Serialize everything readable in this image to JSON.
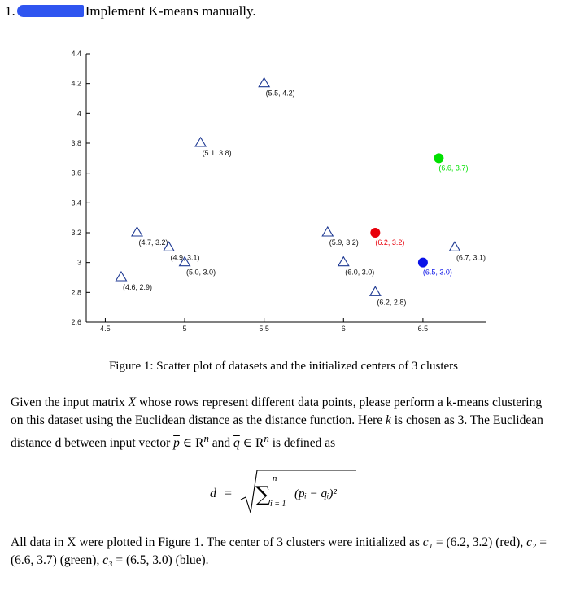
{
  "heading": {
    "number": "1.",
    "title": "Implement K-means manually."
  },
  "chart_data": {
    "type": "scatter",
    "xlim": [
      4.38,
      6.9
    ],
    "ylim": [
      2.6,
      4.4
    ],
    "xticks": [
      4.5,
      5,
      5.5,
      6,
      6.5
    ],
    "yticks": [
      2.6,
      2.8,
      3,
      3.2,
      3.4,
      3.6,
      3.8,
      4,
      4.2,
      4.4
    ],
    "xtick_labels": [
      "4.5",
      "5",
      "5.5",
      "6",
      "6.5"
    ],
    "ytick_labels": [
      "2.6",
      "2.8",
      "3",
      "3.2",
      "3.4",
      "3.6",
      "3.8",
      "4",
      "4.2",
      "4.4"
    ],
    "data_points": [
      {
        "x": 4.6,
        "y": 2.9,
        "label": "(4.6, 2.9)"
      },
      {
        "x": 4.7,
        "y": 3.2,
        "label": "(4.7, 3.2)"
      },
      {
        "x": 4.9,
        "y": 3.1,
        "label": "(4.9, 3.1)"
      },
      {
        "x": 5.0,
        "y": 3.0,
        "label": "(5.0, 3.0)"
      },
      {
        "x": 5.1,
        "y": 3.8,
        "label": "(5.1, 3.8)"
      },
      {
        "x": 5.5,
        "y": 4.2,
        "label": "(5.5, 4.2)"
      },
      {
        "x": 5.9,
        "y": 3.2,
        "label": "(5.9, 3.2)"
      },
      {
        "x": 6.0,
        "y": 3.0,
        "label": "(6.0, 3.0)"
      },
      {
        "x": 6.2,
        "y": 2.8,
        "label": "(6.2, 2.8)"
      },
      {
        "x": 6.7,
        "y": 3.1,
        "label": "(6.7, 3.1)"
      }
    ],
    "data_marker_color": "#1f3a93",
    "centers": [
      {
        "x": 6.2,
        "y": 3.2,
        "label": "(6.2, 3.2)",
        "color": "#e8000b"
      },
      {
        "x": 6.6,
        "y": 3.7,
        "label": "(6.6, 3.7)",
        "color": "#00e000"
      },
      {
        "x": 6.5,
        "y": 3.0,
        "label": "(6.5, 3.0)",
        "color": "#0a12e8"
      }
    ]
  },
  "caption": "Figure 1: Scatter plot of datasets and the initialized centers of 3 clusters",
  "para1": {
    "t1": "Given the input matrix ",
    "X": "X",
    "t2": " whose rows represent different data points, please perform a k-means clustering on this dataset using the Euclidean distance as the distance function. Here ",
    "k": "k",
    "t3": " is chosen as 3. The Euclidean distance d between input vector ",
    "p": "p",
    "t4": " ∈ R",
    "n1": "n",
    "t5": " and ",
    "q": "q",
    "t6": " ∈ R",
    "n2": "n",
    "t7": " is defined as"
  },
  "formula": {
    "lhs": "d",
    "eq": "=",
    "sum": "∑",
    "upper": "n",
    "lower": "i = 1",
    "term": "(pᵢ  −  qᵢ)²"
  },
  "para2": {
    "t1": "All data in X were plotted in Figure 1. The center of 3 clusters were initialized as ",
    "c1": "c₁",
    "v1": " = (6.2, 3.2) (red), ",
    "c2": "c₂",
    "v2": " = (6.6, 3.7) (green), ",
    "c3": "c₃",
    "v3": " = (6.5, 3.0) (blue)."
  }
}
